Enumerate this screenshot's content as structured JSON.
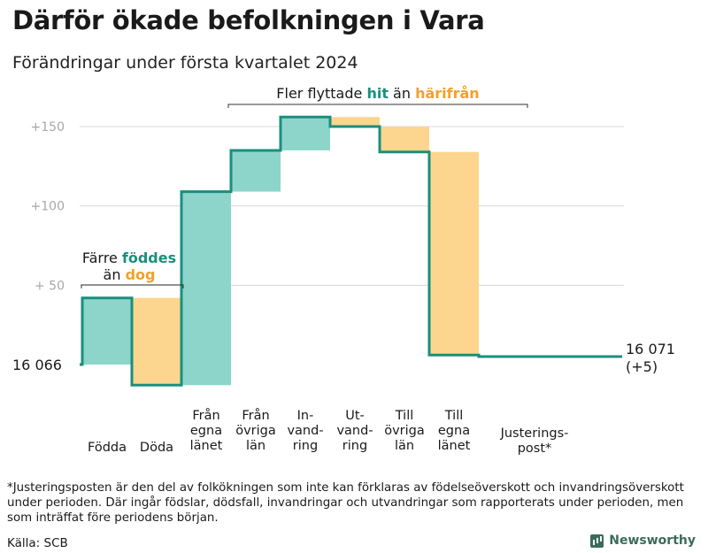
{
  "header": {
    "title": "Därför ökade befolkningen i Vara",
    "subtitle": "Förändringar under första kvartalet 2024"
  },
  "chart_data": {
    "type": "waterfall",
    "start_value": 16066,
    "start_label": "16  066",
    "end_label_line1": "16 071",
    "end_label_line2": "(+5)",
    "y_ticks": [
      {
        "value": 150,
        "label": "+150"
      },
      {
        "value": 100,
        "label": "+100"
      },
      {
        "value": 50,
        "label": "+  50"
      }
    ],
    "steps": [
      {
        "label_lines": [
          "Födda"
        ],
        "delta": 42,
        "color": "green"
      },
      {
        "label_lines": [
          "Döda"
        ],
        "delta": -55,
        "color": "orange"
      },
      {
        "label_lines": [
          "Från",
          "egna",
          "länet"
        ],
        "delta": 122,
        "color": "green"
      },
      {
        "label_lines": [
          "Från",
          "övriga",
          "län"
        ],
        "delta": 26,
        "color": "green"
      },
      {
        "label_lines": [
          "In-",
          "vand-",
          "ring"
        ],
        "delta": 21,
        "color": "green"
      },
      {
        "label_lines": [
          "Ut-",
          "vand-",
          "ring"
        ],
        "delta": -6,
        "color": "orange"
      },
      {
        "label_lines": [
          "Till",
          "övriga",
          "län"
        ],
        "delta": -16,
        "color": "orange"
      },
      {
        "label_lines": [
          "Till",
          "egna",
          "länet"
        ],
        "delta": -128,
        "color": "orange"
      },
      {
        "label_lines": [
          "Justerings-",
          "post*"
        ],
        "delta": -1,
        "color": "none"
      }
    ],
    "annotations": {
      "left": {
        "line1": "Färre",
        "line1_hl": "föddes",
        "line2": "än",
        "line2_hl": "dog"
      },
      "top": {
        "text": "Fler flyttade",
        "hl1": "hit",
        "mid": "än",
        "hl2": "härifrån"
      }
    },
    "colors": {
      "green_fill": "#8dd5cb",
      "orange_fill": "#fcd68f",
      "line": "#1a8f7d",
      "hl_green": "#1a8f7d",
      "hl_orange": "#f0a22a",
      "grid": "#d9d9d9",
      "tick": "#a8a8a8"
    },
    "grid": true
  },
  "footnote": "*Justeringsposten är den del av folkökningen som inte kan förklaras av födelseöverskott och invandringsöverskott under perioden. Där ingår födslar, dödsfall, invandringar och utvandringar som rapporterats under perioden, men som inträffat före periodens början.",
  "source": "Källa: SCB",
  "brand": "Newsworthy"
}
